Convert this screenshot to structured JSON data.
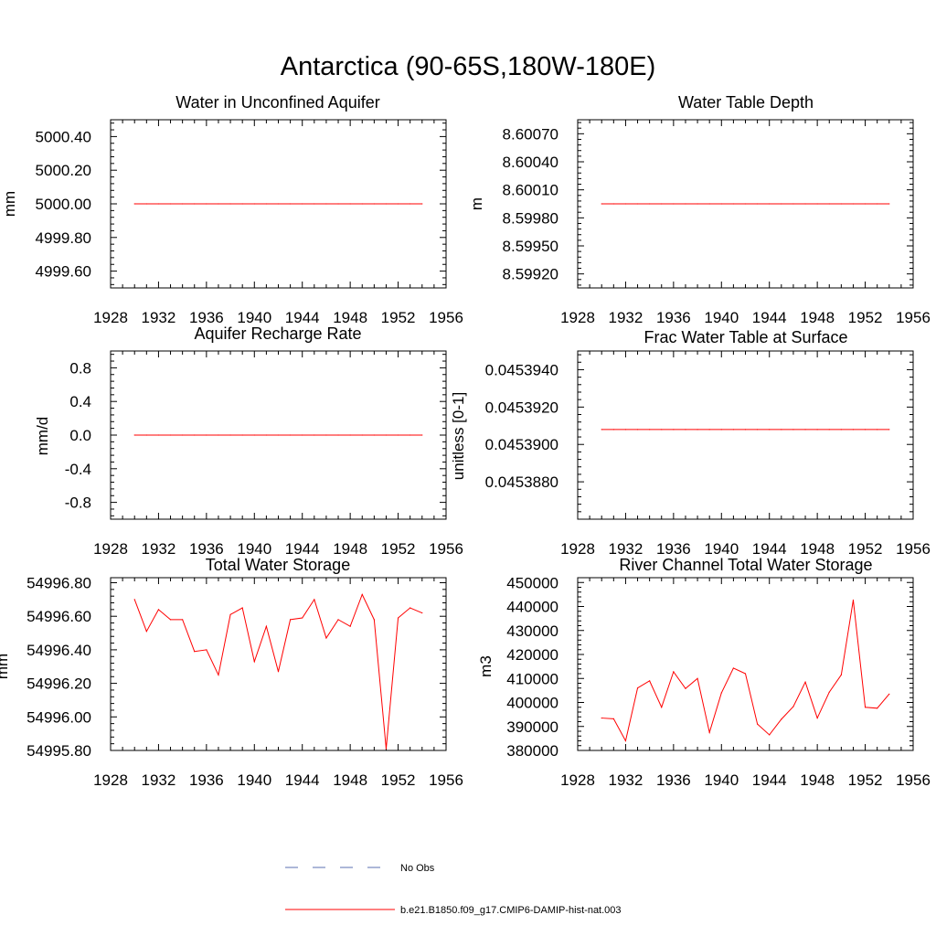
{
  "title": "Antarctica (90-65S,180W-180E)",
  "colors": {
    "model": "#ff0000",
    "obs": "#5b6fb0",
    "axis": "#000000"
  },
  "legend": {
    "obs_label": "No Obs",
    "model_label": "b.e21.B1850.f09_g17.CMIP6-DAMIP-hist-nat.003"
  },
  "chart_data": [
    {
      "type": "line",
      "title": "Water in Unconfined Aquifer",
      "ylabel": "mm",
      "xlim": [
        1928,
        1956
      ],
      "ylim": [
        4999.5,
        5000.5
      ],
      "xticks": [
        1928,
        1932,
        1936,
        1940,
        1944,
        1948,
        1952,
        1956
      ],
      "yticks": [
        4999.6,
        4999.8,
        5000.0,
        5000.2,
        5000.4
      ],
      "ytick_labels": [
        "4999.60",
        "4999.80",
        "5000.00",
        "5000.20",
        "5000.40"
      ],
      "x": [
        1930,
        1931,
        1932,
        1933,
        1934,
        1935,
        1936,
        1937,
        1938,
        1939,
        1940,
        1941,
        1942,
        1943,
        1944,
        1945,
        1946,
        1947,
        1948,
        1949,
        1950,
        1951,
        1952,
        1953,
        1954
      ],
      "series": [
        {
          "values": [
            5000,
            5000,
            5000,
            5000,
            5000,
            5000,
            5000,
            5000,
            5000,
            5000,
            5000,
            5000,
            5000,
            5000,
            5000,
            5000,
            5000,
            5000,
            5000,
            5000,
            5000,
            5000,
            5000,
            5000,
            5000
          ]
        }
      ]
    },
    {
      "type": "line",
      "title": "Water Table Depth",
      "ylabel": "m",
      "xlim": [
        1928,
        1956
      ],
      "ylim": [
        8.59905,
        8.60085
      ],
      "xticks": [
        1928,
        1932,
        1936,
        1940,
        1944,
        1948,
        1952,
        1956
      ],
      "yticks": [
        8.5992,
        8.5995,
        8.5998,
        8.6001,
        8.6004,
        8.6007
      ],
      "ytick_labels": [
        "8.59920",
        "8.59950",
        "8.59980",
        "8.60010",
        "8.60040",
        "8.60070"
      ],
      "x": [
        1930,
        1931,
        1932,
        1933,
        1934,
        1935,
        1936,
        1937,
        1938,
        1939,
        1940,
        1941,
        1942,
        1943,
        1944,
        1945,
        1946,
        1947,
        1948,
        1949,
        1950,
        1951,
        1952,
        1953,
        1954
      ],
      "series": [
        {
          "values": [
            8.59995,
            8.59995,
            8.59995,
            8.59995,
            8.59995,
            8.59995,
            8.59995,
            8.59995,
            8.59995,
            8.59995,
            8.59995,
            8.59995,
            8.59995,
            8.59995,
            8.59995,
            8.59995,
            8.59995,
            8.59995,
            8.59995,
            8.59995,
            8.59995,
            8.59995,
            8.59995,
            8.59995,
            8.59995
          ]
        }
      ]
    },
    {
      "type": "line",
      "title": "Aquifer Recharge Rate",
      "ylabel": "mm/d",
      "xlim": [
        1928,
        1956
      ],
      "ylim": [
        -1,
        1
      ],
      "xticks": [
        1928,
        1932,
        1936,
        1940,
        1944,
        1948,
        1952,
        1956
      ],
      "yticks": [
        -0.8,
        -0.4,
        0.0,
        0.4,
        0.8
      ],
      "ytick_labels": [
        "-0.8",
        "-0.4",
        "0.0",
        "0.4",
        "0.8"
      ],
      "x": [
        1930,
        1931,
        1932,
        1933,
        1934,
        1935,
        1936,
        1937,
        1938,
        1939,
        1940,
        1941,
        1942,
        1943,
        1944,
        1945,
        1946,
        1947,
        1948,
        1949,
        1950,
        1951,
        1952,
        1953,
        1954
      ],
      "series": [
        {
          "values": [
            0,
            0,
            0,
            0,
            0,
            0,
            0,
            0,
            0,
            0,
            0,
            0,
            0,
            0,
            0,
            0,
            0,
            0,
            0,
            0,
            0,
            0,
            0,
            0,
            0
          ]
        }
      ]
    },
    {
      "type": "line",
      "title": "Frac Water Table at Surface",
      "ylabel": "unitless [0-1]",
      "xlim": [
        1928,
        1956
      ],
      "ylim": [
        0.045386,
        0.045395
      ],
      "xticks": [
        1928,
        1932,
        1936,
        1940,
        1944,
        1948,
        1952,
        1956
      ],
      "yticks": [
        0.045388,
        0.04539,
        0.045392,
        0.045394
      ],
      "ytick_labels": [
        "0.0453880",
        "0.0453900",
        "0.0453920",
        "0.0453940"
      ],
      "x": [
        1930,
        1931,
        1932,
        1933,
        1934,
        1935,
        1936,
        1937,
        1938,
        1939,
        1940,
        1941,
        1942,
        1943,
        1944,
        1945,
        1946,
        1947,
        1948,
        1949,
        1950,
        1951,
        1952,
        1953,
        1954
      ],
      "series": [
        {
          "values": [
            0.0453908,
            0.0453908,
            0.0453908,
            0.0453908,
            0.0453908,
            0.0453908,
            0.0453908,
            0.0453908,
            0.0453908,
            0.0453908,
            0.0453908,
            0.0453908,
            0.0453908,
            0.0453908,
            0.0453908,
            0.0453908,
            0.0453908,
            0.0453908,
            0.0453908,
            0.0453908,
            0.0453908,
            0.0453908,
            0.0453908,
            0.0453908,
            0.0453908
          ]
        }
      ]
    },
    {
      "type": "line",
      "title": "Total Water Storage",
      "ylabel": "mm",
      "xlim": [
        1928,
        1956
      ],
      "ylim": [
        54995.8,
        54996.83
      ],
      "xticks": [
        1928,
        1932,
        1936,
        1940,
        1944,
        1948,
        1952,
        1956
      ],
      "yticks": [
        54995.8,
        54996.0,
        54996.2,
        54996.4,
        54996.6,
        54996.8
      ],
      "ytick_labels": [
        "54995.80",
        "54996.00",
        "54996.20",
        "54996.40",
        "54996.60",
        "54996.80"
      ],
      "x": [
        1930,
        1931,
        1932,
        1933,
        1934,
        1935,
        1936,
        1937,
        1938,
        1939,
        1940,
        1941,
        1942,
        1943,
        1944,
        1945,
        1946,
        1947,
        1948,
        1949,
        1950,
        1951,
        1952,
        1953,
        1954
      ],
      "series": [
        {
          "values": [
            54996.7,
            54996.51,
            54996.64,
            54996.58,
            54996.58,
            54996.39,
            54996.4,
            54996.25,
            54996.61,
            54996.65,
            54996.33,
            54996.54,
            54996.27,
            54996.58,
            54996.59,
            54996.7,
            54996.47,
            54996.58,
            54996.54,
            54996.73,
            54996.58,
            54995.81,
            54996.59,
            54996.65,
            54996.62
          ]
        }
      ]
    },
    {
      "type": "line",
      "title": "River Channel Total Water Storage",
      "ylabel": "m3",
      "xlim": [
        1928,
        1956
      ],
      "ylim": [
        380000,
        452000
      ],
      "xticks": [
        1928,
        1932,
        1936,
        1940,
        1944,
        1948,
        1952,
        1956
      ],
      "yticks": [
        380000,
        390000,
        400000,
        410000,
        420000,
        430000,
        440000,
        450000
      ],
      "ytick_labels": [
        "380000",
        "390000",
        "400000",
        "410000",
        "420000",
        "430000",
        "440000",
        "450000"
      ],
      "x": [
        1930,
        1931,
        1932,
        1933,
        1934,
        1935,
        1936,
        1937,
        1938,
        1939,
        1940,
        1941,
        1942,
        1943,
        1944,
        1945,
        1946,
        1947,
        1948,
        1949,
        1950,
        1951,
        1952,
        1953,
        1954
      ],
      "series": [
        {
          "values": [
            393500,
            393200,
            384000,
            406000,
            409000,
            398000,
            412800,
            405800,
            410000,
            387500,
            404000,
            414300,
            412000,
            391000,
            386500,
            393000,
            398300,
            408500,
            393500,
            404300,
            411500,
            442700,
            398000,
            397600,
            403500
          ]
        }
      ]
    }
  ]
}
